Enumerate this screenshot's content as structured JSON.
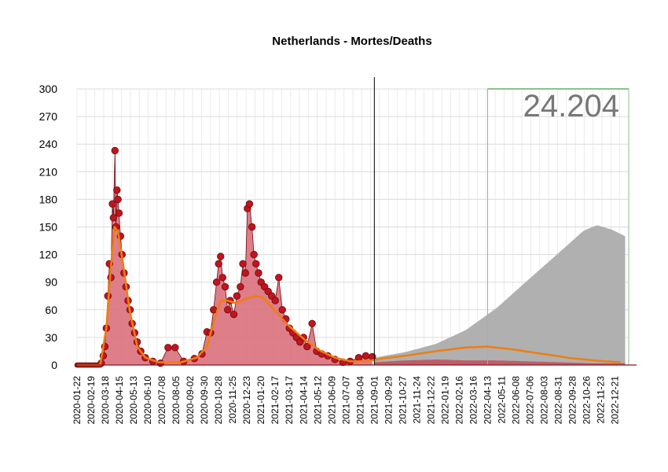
{
  "chart_data": {
    "type": "line",
    "title": "Netherlands - Mortes/Deaths",
    "total_label": "24.204",
    "ylim": [
      0,
      300
    ],
    "yticks": [
      0,
      30,
      60,
      90,
      120,
      150,
      180,
      210,
      240,
      270,
      300
    ],
    "x_range": [
      "2020-01-22",
      "2023-01-17"
    ],
    "projection_start": "2021-09-01",
    "highlight_start": "2022-04-13",
    "xticks": [
      "2020-01-22",
      "2020-02-19",
      "2020-03-18",
      "2020-04-15",
      "2020-05-13",
      "2020-06-10",
      "2020-07-08",
      "2020-08-05",
      "2020-09-02",
      "2020-09-30",
      "2020-10-28",
      "2020-11-25",
      "2020-12-23",
      "2021-01-20",
      "2021-02-17",
      "2021-03-17",
      "2021-04-14",
      "2021-05-12",
      "2021-06-09",
      "2021-07-07",
      "2021-08-04",
      "2021-09-01",
      "2021-09-29",
      "2021-10-27",
      "2021-11-24",
      "2021-12-22",
      "2022-01-19",
      "2022-02-16",
      "2022-03-16",
      "2022-04-13",
      "2022-05-11",
      "2022-06-08",
      "2022-07-06",
      "2022-08-03",
      "2022-08-31",
      "2022-09-28",
      "2022-10-26",
      "2022-11-23",
      "2022-12-21"
    ],
    "observed_points": [
      {
        "x": "2020-03-10",
        "y": 2
      },
      {
        "x": "2020-03-14",
        "y": 10
      },
      {
        "x": "2020-03-17",
        "y": 20
      },
      {
        "x": "2020-03-20",
        "y": 40
      },
      {
        "x": "2020-03-23",
        "y": 75
      },
      {
        "x": "2020-03-26",
        "y": 110
      },
      {
        "x": "2020-03-29",
        "y": 95
      },
      {
        "x": "2020-04-01",
        "y": 175
      },
      {
        "x": "2020-04-03",
        "y": 160
      },
      {
        "x": "2020-04-06",
        "y": 233
      },
      {
        "x": "2020-04-08",
        "y": 150
      },
      {
        "x": "2020-04-10",
        "y": 190
      },
      {
        "x": "2020-04-12",
        "y": 180
      },
      {
        "x": "2020-04-14",
        "y": 165
      },
      {
        "x": "2020-04-17",
        "y": 140
      },
      {
        "x": "2020-04-20",
        "y": 120
      },
      {
        "x": "2020-04-24",
        "y": 100
      },
      {
        "x": "2020-04-28",
        "y": 85
      },
      {
        "x": "2020-05-02",
        "y": 70
      },
      {
        "x": "2020-05-06",
        "y": 60
      },
      {
        "x": "2020-05-10",
        "y": 45
      },
      {
        "x": "2020-05-15",
        "y": 35
      },
      {
        "x": "2020-05-20",
        "y": 25
      },
      {
        "x": "2020-05-27",
        "y": 15
      },
      {
        "x": "2020-06-05",
        "y": 8
      },
      {
        "x": "2020-06-20",
        "y": 4
      },
      {
        "x": "2020-07-05",
        "y": 2
      },
      {
        "x": "2020-07-20",
        "y": 19
      },
      {
        "x": "2020-08-03",
        "y": 19
      },
      {
        "x": "2020-08-20",
        "y": 4
      },
      {
        "x": "2020-09-10",
        "y": 7
      },
      {
        "x": "2020-09-25",
        "y": 12
      },
      {
        "x": "2020-10-05",
        "y": 36
      },
      {
        "x": "2020-10-12",
        "y": 35
      },
      {
        "x": "2020-10-18",
        "y": 60
      },
      {
        "x": "2020-10-24",
        "y": 90
      },
      {
        "x": "2020-10-28",
        "y": 110
      },
      {
        "x": "2020-11-01",
        "y": 118
      },
      {
        "x": "2020-11-05",
        "y": 95
      },
      {
        "x": "2020-11-10",
        "y": 85
      },
      {
        "x": "2020-11-15",
        "y": 60
      },
      {
        "x": "2020-11-20",
        "y": 70
      },
      {
        "x": "2020-11-27",
        "y": 55
      },
      {
        "x": "2020-12-03",
        "y": 75
      },
      {
        "x": "2020-12-10",
        "y": 85
      },
      {
        "x": "2020-12-15",
        "y": 110
      },
      {
        "x": "2020-12-20",
        "y": 100
      },
      {
        "x": "2020-12-24",
        "y": 170
      },
      {
        "x": "2020-12-28",
        "y": 175
      },
      {
        "x": "2021-01-02",
        "y": 150
      },
      {
        "x": "2021-01-06",
        "y": 120
      },
      {
        "x": "2021-01-10",
        "y": 110
      },
      {
        "x": "2021-01-15",
        "y": 100
      },
      {
        "x": "2021-01-20",
        "y": 90
      },
      {
        "x": "2021-01-27",
        "y": 85
      },
      {
        "x": "2021-02-03",
        "y": 80
      },
      {
        "x": "2021-02-10",
        "y": 75
      },
      {
        "x": "2021-02-17",
        "y": 70
      },
      {
        "x": "2021-02-24",
        "y": 95
      },
      {
        "x": "2021-03-03",
        "y": 60
      },
      {
        "x": "2021-03-10",
        "y": 50
      },
      {
        "x": "2021-03-17",
        "y": 40
      },
      {
        "x": "2021-03-24",
        "y": 35
      },
      {
        "x": "2021-03-31",
        "y": 30
      },
      {
        "x": "2021-04-07",
        "y": 25
      },
      {
        "x": "2021-04-14",
        "y": 30
      },
      {
        "x": "2021-04-21",
        "y": 20
      },
      {
        "x": "2021-05-01",
        "y": 45
      },
      {
        "x": "2021-05-10",
        "y": 15
      },
      {
        "x": "2021-05-20",
        "y": 12
      },
      {
        "x": "2021-06-01",
        "y": 10
      },
      {
        "x": "2021-06-15",
        "y": 6
      },
      {
        "x": "2021-07-01",
        "y": 3
      },
      {
        "x": "2021-07-15",
        "y": 4
      },
      {
        "x": "2021-08-01",
        "y": 8
      },
      {
        "x": "2021-08-15",
        "y": 10
      },
      {
        "x": "2021-08-28",
        "y": 9
      }
    ],
    "trend": [
      {
        "x": "2020-01-22",
        "y": 0
      },
      {
        "x": "2020-03-08",
        "y": 0
      },
      {
        "x": "2020-03-20",
        "y": 40
      },
      {
        "x": "2020-03-28",
        "y": 100
      },
      {
        "x": "2020-04-05",
        "y": 150
      },
      {
        "x": "2020-04-12",
        "y": 145
      },
      {
        "x": "2020-04-22",
        "y": 110
      },
      {
        "x": "2020-05-05",
        "y": 60
      },
      {
        "x": "2020-05-20",
        "y": 20
      },
      {
        "x": "2020-06-05",
        "y": 8
      },
      {
        "x": "2020-07-01",
        "y": 3
      },
      {
        "x": "2020-08-15",
        "y": 3
      },
      {
        "x": "2020-09-15",
        "y": 8
      },
      {
        "x": "2020-10-05",
        "y": 20
      },
      {
        "x": "2020-10-20",
        "y": 50
      },
      {
        "x": "2020-11-01",
        "y": 70
      },
      {
        "x": "2020-11-15",
        "y": 70
      },
      {
        "x": "2020-12-01",
        "y": 67
      },
      {
        "x": "2020-12-20",
        "y": 72
      },
      {
        "x": "2021-01-10",
        "y": 75
      },
      {
        "x": "2021-01-25",
        "y": 73
      },
      {
        "x": "2021-02-15",
        "y": 60
      },
      {
        "x": "2021-03-15",
        "y": 43
      },
      {
        "x": "2021-04-15",
        "y": 28
      },
      {
        "x": "2021-05-15",
        "y": 16
      },
      {
        "x": "2021-06-15",
        "y": 8
      },
      {
        "x": "2021-07-15",
        "y": 4
      },
      {
        "x": "2021-08-15",
        "y": 4
      },
      {
        "x": "2021-09-15",
        "y": 7
      },
      {
        "x": "2021-11-01",
        "y": 10
      },
      {
        "x": "2022-01-01",
        "y": 15
      },
      {
        "x": "2022-03-01",
        "y": 19
      },
      {
        "x": "2022-04-13",
        "y": 20
      },
      {
        "x": "2022-06-01",
        "y": 17
      },
      {
        "x": "2022-08-01",
        "y": 12
      },
      {
        "x": "2022-10-01",
        "y": 7
      },
      {
        "x": "2022-12-01",
        "y": 4
      },
      {
        "x": "2023-01-01",
        "y": 3
      }
    ],
    "projection_upper": [
      {
        "x": "2021-09-01",
        "y": 8
      },
      {
        "x": "2021-11-01",
        "y": 14
      },
      {
        "x": "2022-01-01",
        "y": 23
      },
      {
        "x": "2022-03-01",
        "y": 38
      },
      {
        "x": "2022-05-01",
        "y": 62
      },
      {
        "x": "2022-07-01",
        "y": 92
      },
      {
        "x": "2022-09-01",
        "y": 122
      },
      {
        "x": "2022-10-20",
        "y": 146
      },
      {
        "x": "2022-11-15",
        "y": 152
      },
      {
        "x": "2022-12-15",
        "y": 147
      },
      {
        "x": "2023-01-10",
        "y": 140
      }
    ],
    "projection_lower": [
      {
        "x": "2021-09-01",
        "y": 3
      },
      {
        "x": "2021-11-01",
        "y": 5
      },
      {
        "x": "2022-01-01",
        "y": 6
      },
      {
        "x": "2022-03-01",
        "y": 5
      },
      {
        "x": "2022-05-01",
        "y": 5
      },
      {
        "x": "2022-07-01",
        "y": 4
      },
      {
        "x": "2022-09-01",
        "y": 3
      },
      {
        "x": "2022-11-01",
        "y": 2
      },
      {
        "x": "2023-01-10",
        "y": 2
      }
    ],
    "colors": {
      "observed_fill": "#d9707c",
      "point_fill": "#c0151e",
      "point_stroke": "#6e0a0f",
      "trend": "#f07d10",
      "projection_band": "#b0b0b0",
      "projection_fill": "#c0505a",
      "highlight": "#8fbf8f",
      "marker": "#000000"
    }
  }
}
